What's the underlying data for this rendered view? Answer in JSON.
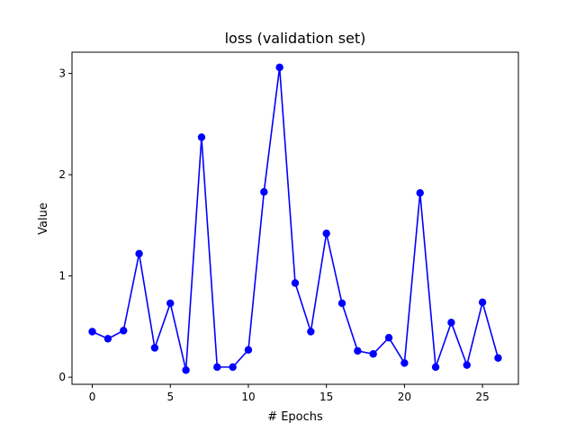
{
  "chart_data": {
    "type": "line",
    "title": "loss (validation set)",
    "xlabel": "# Epochs",
    "ylabel": "Value",
    "xlim": [
      -1.3,
      27.3
    ],
    "ylim": [
      -0.07,
      3.21
    ],
    "xticks": [
      0,
      5,
      10,
      15,
      20,
      25
    ],
    "yticks": [
      0,
      1,
      2,
      3
    ],
    "grid": false,
    "legend": "none",
    "series": [
      {
        "color": "#0000ff",
        "marker": "circle",
        "x": [
          0,
          1,
          2,
          3,
          4,
          5,
          6,
          7,
          8,
          9,
          10,
          11,
          12,
          13,
          14,
          15,
          16,
          17,
          18,
          19,
          20,
          21,
          22,
          23,
          24,
          25,
          26
        ],
        "values": [
          0.45,
          0.38,
          0.46,
          1.22,
          0.29,
          0.73,
          0.07,
          2.37,
          0.1,
          0.1,
          0.27,
          1.83,
          3.06,
          0.93,
          0.45,
          1.42,
          0.73,
          0.26,
          0.23,
          0.39,
          0.14,
          1.82,
          0.1,
          0.54,
          0.12,
          0.74,
          0.19
        ]
      }
    ]
  }
}
